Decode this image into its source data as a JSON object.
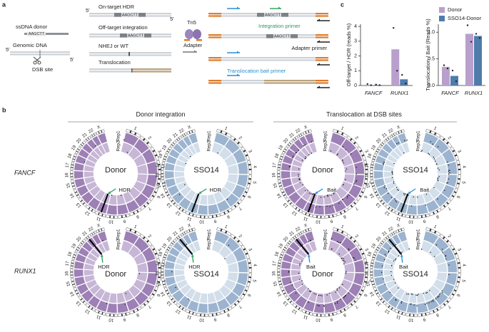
{
  "panel_labels": [
    "a",
    "b",
    "c"
  ],
  "panel_a": {
    "donor_label": "ssDNA donor",
    "donor_seq": "AAGCTT",
    "genomic_label": "Genomic DNA",
    "five_prime": "5'",
    "dsb_label": "DSB site",
    "outcomes": [
      "On-target HDR",
      "Off-target integration",
      "NHEJ or WT",
      "Translocation"
    ],
    "seq": "AAGCTT",
    "tn5": "Tn5",
    "adapter": "Adapter",
    "integration_primer": "Integration primer",
    "adapter_primer": "Adapter primer",
    "bait_primer": "Translocation bait primer"
  },
  "panel_b": {
    "column_headers": [
      "Donor integration",
      "Translocation at DSB sites"
    ],
    "row_labels": [
      "FANCF",
      "RUNX1"
    ],
    "chromosomes": [
      "1",
      "2",
      "3",
      "4",
      "5",
      "6",
      "7",
      "8",
      "9",
      "10",
      "11",
      "12",
      "13",
      "14",
      "15",
      "16",
      "17",
      "18",
      "19",
      "20",
      "21",
      "22",
      "X"
    ],
    "replicates": [
      "Rep1",
      "Rep2"
    ],
    "center_labels": [
      "Donor",
      "SSO14"
    ],
    "annotations": [
      "HDR",
      "Bait"
    ]
  },
  "chart_data": [
    {
      "type": "bar",
      "ylabel": "Off-target / HDR (reads %)",
      "categories": [
        "FANCF",
        "RUNX1"
      ],
      "ylim": [
        0,
        4.15
      ],
      "yticks": [
        0,
        1,
        2,
        3,
        4
      ],
      "series": [
        {
          "color": "#b9a0cc",
          "values": [
            0.05,
            2.45
          ],
          "points": [
            [
              0.1,
              0.02
            ],
            [
              3.9,
              1.0
            ]
          ]
        },
        {
          "color": "#4f7cab",
          "values": [
            0.04,
            0.42
          ],
          "points": [
            [
              0.06,
              0.02
            ],
            [
              0.72,
              0.14
            ]
          ]
        }
      ]
    },
    {
      "type": "bar",
      "ylabel": "Translocation / Bait (Reads %)",
      "categories": [
        "FANCF",
        "RUNX1"
      ],
      "ylim": [
        0,
        1.15
      ],
      "yticks": [
        {
          "value": 0,
          "label": "0.0"
        },
        0.5,
        {
          "value": 1,
          "label": "1.0"
        }
      ],
      "legend": "upper right",
      "series": [
        {
          "name": "Donor",
          "color": "#b9a0cc",
          "values": [
            0.35,
            0.97
          ],
          "points": [
            [
              0.38,
              0.32
            ],
            [
              1.13,
              0.82
            ]
          ]
        },
        {
          "name": "SSO14-Donor",
          "color": "#4f7cab",
          "values": [
            0.18,
            0.93
          ],
          "points": [
            [
              0.28,
              0.08
            ],
            [
              0.97,
              0.89
            ]
          ]
        }
      ]
    }
  ]
}
